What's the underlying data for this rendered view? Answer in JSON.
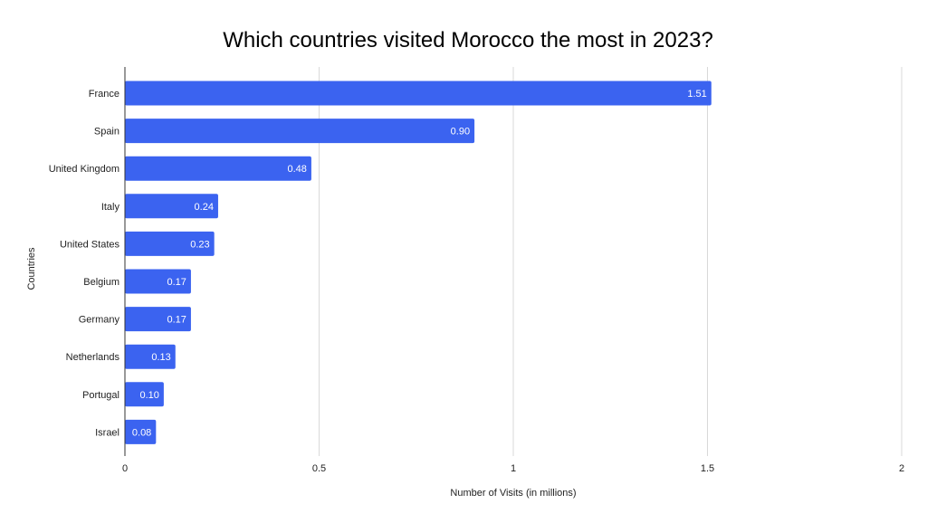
{
  "chart_data": {
    "type": "bar",
    "orientation": "horizontal",
    "title": "Which countries visited Morocco the most in 2023?",
    "xlabel": "Number of Visits (in millions)",
    "ylabel": "Countries",
    "categories": [
      "France",
      "Spain",
      "United Kingdom",
      "Italy",
      "United States",
      "Belgium",
      "Germany",
      "Netherlands",
      "Portugal",
      "Israel"
    ],
    "values": [
      1.51,
      0.9,
      0.48,
      0.24,
      0.23,
      0.17,
      0.17,
      0.13,
      0.1,
      0.08
    ],
    "value_labels": [
      "1.51",
      "0.90",
      "0.48",
      "0.24",
      "0.23",
      "0.17",
      "0.17",
      "0.13",
      "0.10",
      "0.08"
    ],
    "xlim": [
      0,
      2
    ],
    "xticks": [
      0,
      0.5,
      1,
      1.5,
      2
    ],
    "xtick_labels": [
      "0",
      "0.5",
      "1",
      "1.5",
      "2"
    ],
    "grid": true,
    "legend": "none",
    "bar_color": "#3b63f0"
  }
}
